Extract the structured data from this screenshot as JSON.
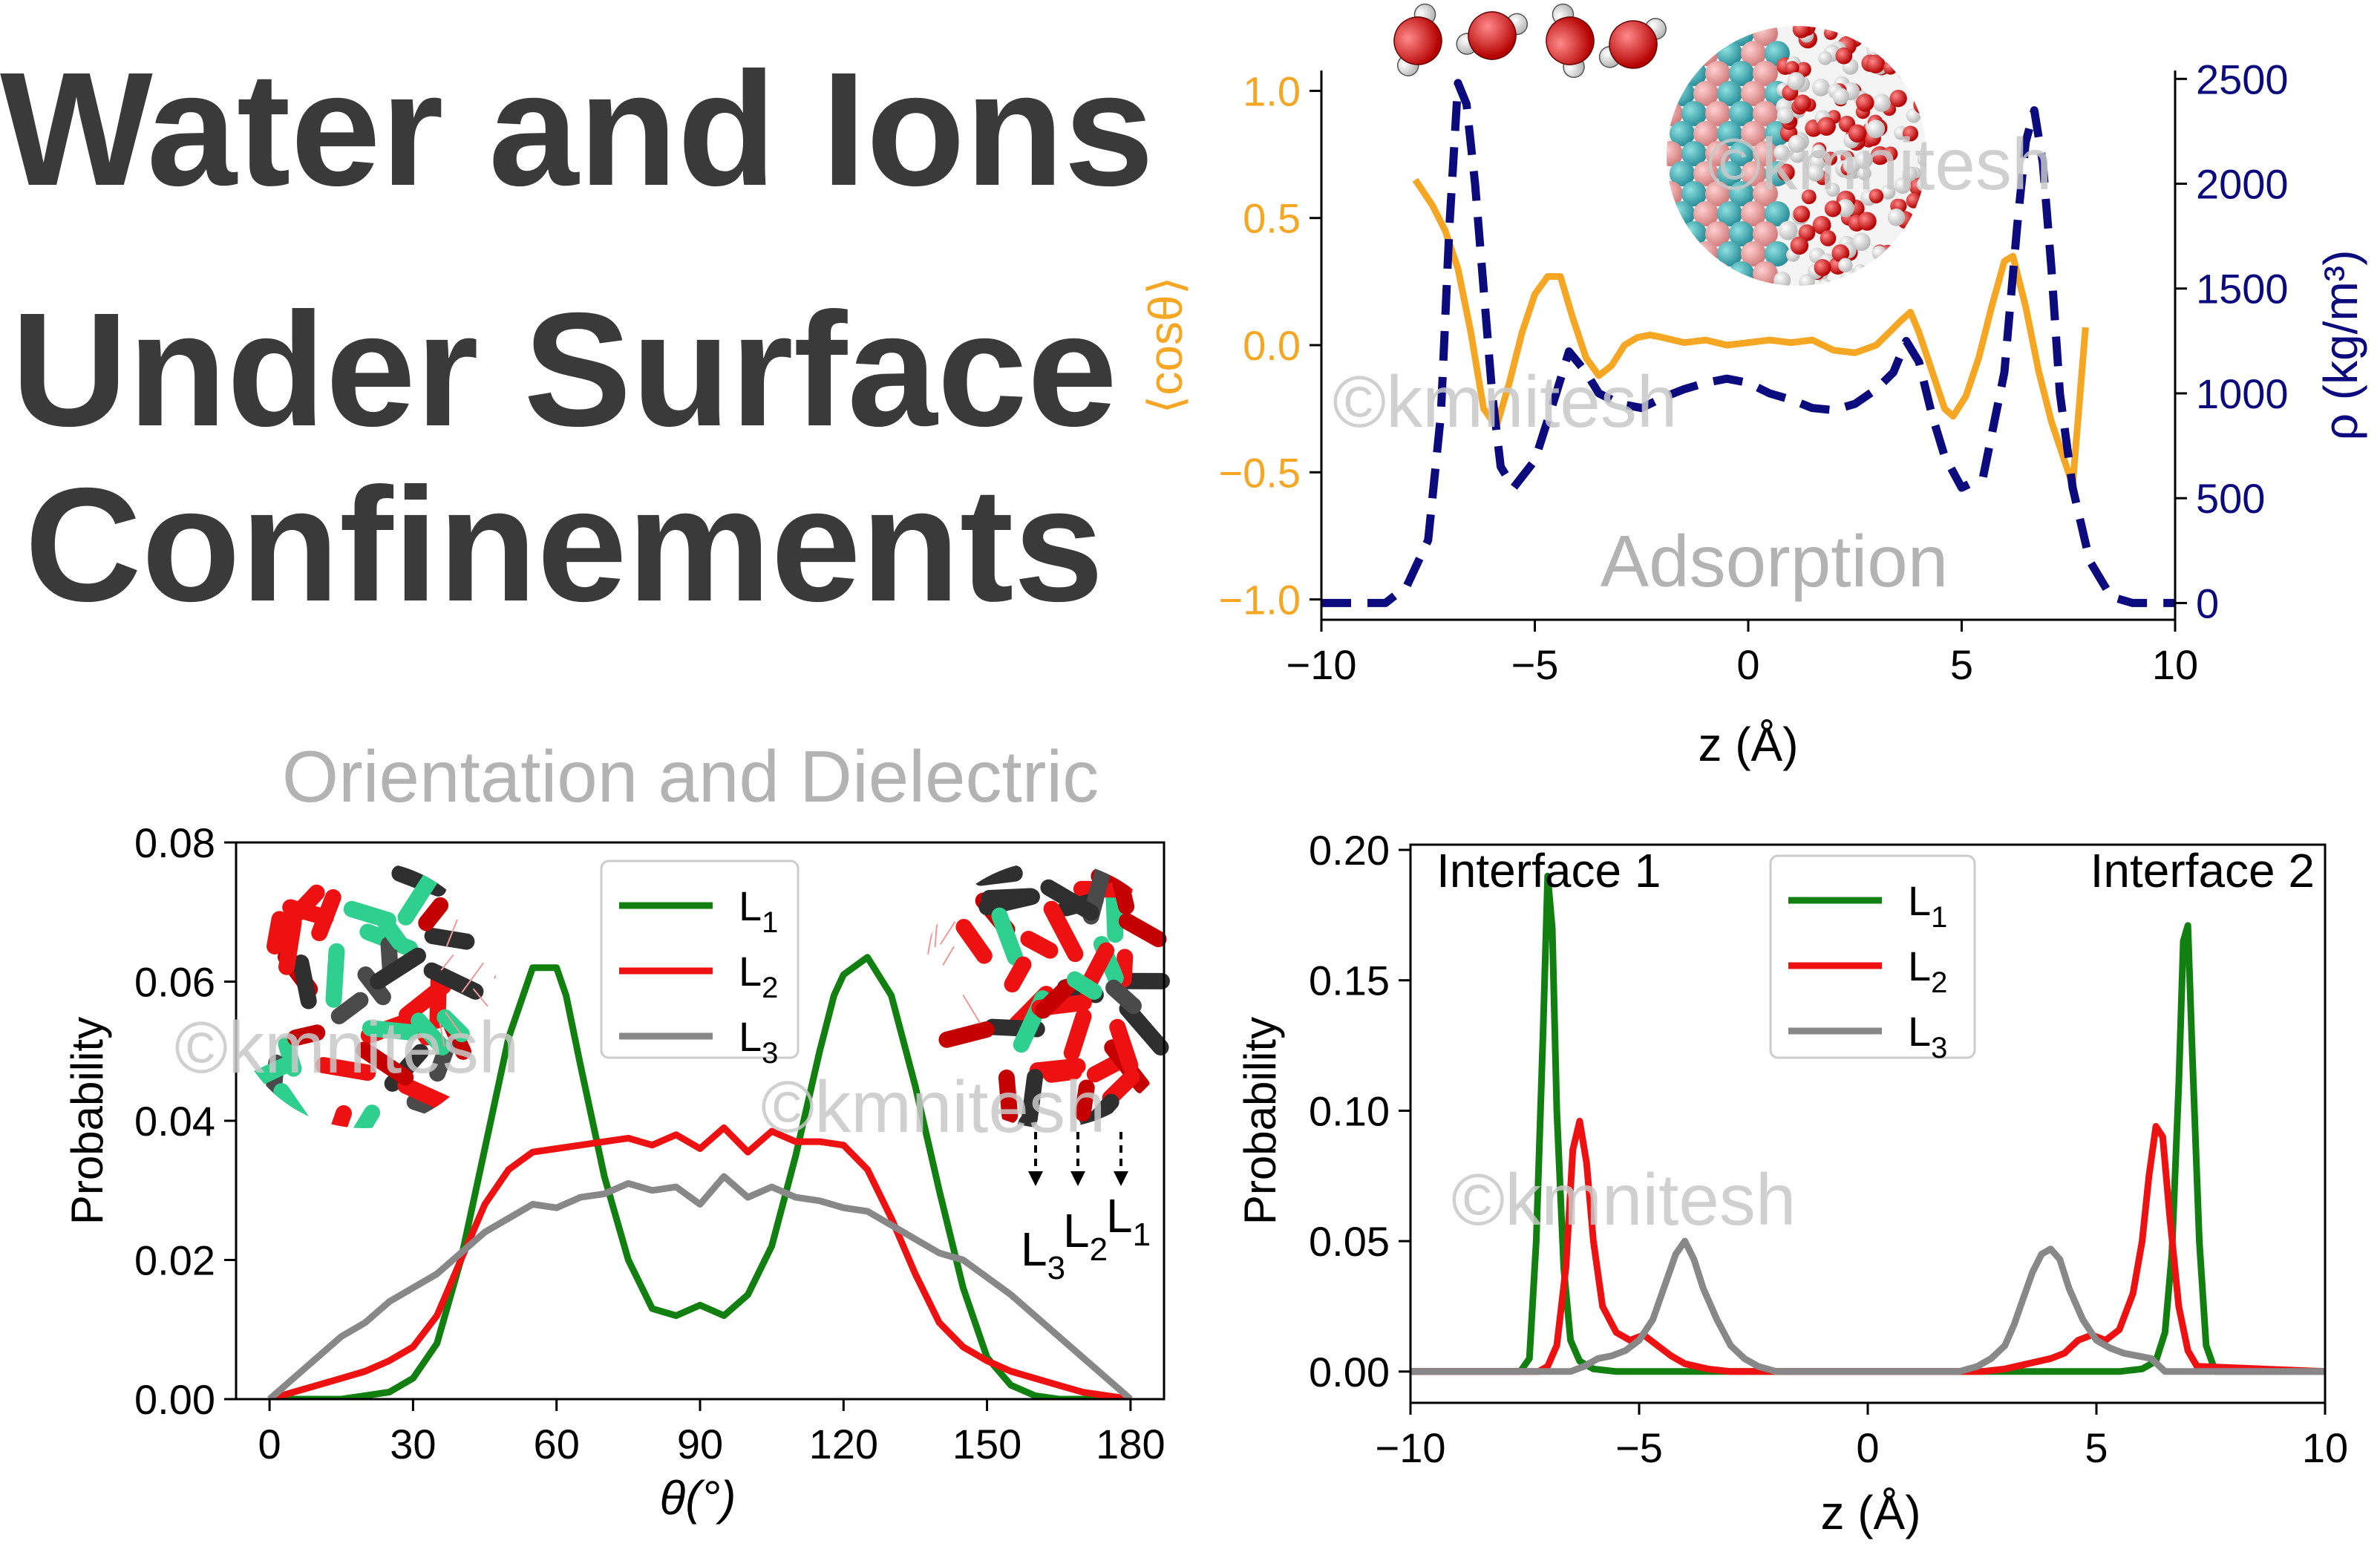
{
  "title": {
    "lines": [
      "Water and Ions",
      "Under Surface",
      "Confinements"
    ]
  },
  "watermark": "©kmnitesh",
  "colors": {
    "orange": "#f5a623",
    "navy": "#0b0b7e",
    "green": "#118011",
    "red": "#ee1111",
    "gray": "#888888",
    "annotation": "#b3b3b3",
    "title": "#3a3a3a"
  },
  "chart_data": [
    {
      "type": "line",
      "annotation": "Adsorption",
      "xlabel": "z (Å)",
      "ylabel_left": "⟨cosθ⟩",
      "ylabel_right": "ρ (kg/m³)",
      "xlim": [
        -10,
        10
      ],
      "ylim_left": [
        -1.08,
        1.08
      ],
      "ylim_right": [
        -80,
        2540
      ],
      "xticks": [
        -10,
        -5,
        0,
        5,
        10
      ],
      "xtick_labels": [
        "−10",
        "−5",
        "0",
        "5",
        "10"
      ],
      "yticks_left": [
        -1.0,
        -0.5,
        0.0,
        0.5,
        1.0
      ],
      "ytick_labels_left": [
        "−1.0",
        "−0.5",
        "0.0",
        "0.5",
        "1.0"
      ],
      "yticks_right": [
        0,
        500,
        1000,
        1500,
        2000,
        2500
      ],
      "ytick_labels_right": [
        "0",
        "500",
        "1000",
        "1500",
        "2000",
        "2500"
      ],
      "series": [
        {
          "axis": "left",
          "style": "solid",
          "color": "#f5a623",
          "x": [
            -7.8,
            -7.4,
            -7.1,
            -6.8,
            -6.5,
            -6.2,
            -5.9,
            -5.6,
            -5.3,
            -5.0,
            -4.7,
            -4.4,
            -4.1,
            -3.8,
            -3.5,
            -3.2,
            -2.9,
            -2.6,
            -2.3,
            -2.0,
            -1.5,
            -1.0,
            -0.5,
            0.0,
            0.5,
            1.0,
            1.5,
            2.0,
            2.5,
            3.0,
            3.3,
            3.6,
            3.8,
            4.0,
            4.2,
            4.4,
            4.6,
            4.8,
            5.1,
            5.4,
            5.7,
            6.0,
            6.2,
            6.5,
            6.8,
            7.1,
            7.4,
            7.6,
            7.9
          ],
          "y": [
            0.65,
            0.55,
            0.45,
            0.3,
            0.05,
            -0.25,
            -0.32,
            -0.15,
            0.05,
            0.2,
            0.27,
            0.27,
            0.1,
            -0.05,
            -0.12,
            -0.08,
            0.0,
            0.03,
            0.04,
            0.03,
            0.01,
            0.02,
            0.0,
            0.01,
            0.02,
            0.01,
            0.02,
            -0.02,
            -0.03,
            0.0,
            0.05,
            0.1,
            0.13,
            0.05,
            -0.05,
            -0.15,
            -0.25,
            -0.28,
            -0.2,
            -0.05,
            0.15,
            0.33,
            0.35,
            0.15,
            -0.1,
            -0.3,
            -0.45,
            -0.55,
            0.07
          ]
        },
        {
          "axis": "right",
          "style": "dashed",
          "color": "#0b0b7e",
          "x": [
            -10.0,
            -9.0,
            -8.5,
            -8.0,
            -7.5,
            -7.2,
            -7.0,
            -6.8,
            -6.6,
            -6.4,
            -6.2,
            -6.0,
            -5.8,
            -5.5,
            -5.0,
            -4.5,
            -4.2,
            -3.8,
            -3.5,
            -3.0,
            -2.5,
            -2.0,
            -1.5,
            -1.0,
            -0.5,
            0.0,
            0.5,
            1.0,
            1.5,
            2.0,
            2.5,
            3.0,
            3.4,
            3.7,
            4.0,
            4.3,
            4.6,
            5.0,
            5.5,
            6.0,
            6.3,
            6.5,
            6.7,
            6.9,
            7.1,
            7.3,
            7.6,
            8.0,
            8.5,
            9.0,
            10.0
          ],
          "y": [
            0,
            0,
            0,
            80,
            300,
            900,
            1800,
            2480,
            2380,
            2000,
            1500,
            1000,
            650,
            550,
            680,
            1000,
            1200,
            1100,
            1000,
            950,
            930,
            980,
            1020,
            1050,
            1070,
            1050,
            1000,
            970,
            930,
            920,
            950,
            1020,
            1100,
            1250,
            1150,
            900,
            700,
            550,
            600,
            1100,
            1800,
            2200,
            2350,
            2100,
            1600,
            1000,
            550,
            200,
            30,
            0,
            0
          ]
        }
      ]
    },
    {
      "type": "line",
      "annotation": "Orientation and Dielectric",
      "xlabel": "θ(°)",
      "ylabel": "Probability",
      "xlim": [
        -7,
        187
      ],
      "ylim": [
        0,
        0.08
      ],
      "xticks": [
        0,
        30,
        60,
        90,
        120,
        150,
        180
      ],
      "yticks": [
        0.0,
        0.02,
        0.04,
        0.06,
        0.08
      ],
      "ytick_labels": [
        "0.00",
        "0.02",
        "0.04",
        "0.06",
        "0.08"
      ],
      "legend": [
        "L1",
        "L2",
        "L3"
      ],
      "legend_position": "top-center",
      "layer_labels": [
        "L3",
        "L2",
        "L1"
      ],
      "series": [
        {
          "name": "L1",
          "color": "#118011",
          "x": [
            0,
            5,
            10,
            15,
            20,
            25,
            30,
            35,
            40,
            45,
            50,
            55,
            60,
            62,
            65,
            70,
            75,
            80,
            85,
            90,
            95,
            100,
            105,
            110,
            115,
            118,
            120,
            125,
            130,
            135,
            140,
            145,
            150,
            155,
            160,
            165,
            170,
            175,
            180
          ],
          "y": [
            0.0,
            0.0,
            0.0,
            0.0,
            0.0005,
            0.001,
            0.003,
            0.008,
            0.02,
            0.036,
            0.052,
            0.062,
            0.062,
            0.058,
            0.048,
            0.032,
            0.02,
            0.013,
            0.012,
            0.0135,
            0.012,
            0.015,
            0.022,
            0.035,
            0.05,
            0.058,
            0.061,
            0.0635,
            0.058,
            0.045,
            0.03,
            0.016,
            0.006,
            0.002,
            0.0005,
            0.0,
            0.0,
            0.0,
            0.0
          ]
        },
        {
          "name": "L2",
          "color": "#ee1111",
          "x": [
            0,
            5,
            10,
            15,
            20,
            25,
            30,
            35,
            40,
            45,
            50,
            55,
            60,
            65,
            70,
            75,
            80,
            85,
            90,
            95,
            100,
            105,
            110,
            115,
            120,
            125,
            130,
            135,
            140,
            145,
            150,
            155,
            160,
            165,
            170,
            175,
            180
          ],
          "y": [
            0.0,
            0.001,
            0.002,
            0.003,
            0.004,
            0.0055,
            0.0075,
            0.012,
            0.02,
            0.028,
            0.033,
            0.0355,
            0.036,
            0.0365,
            0.037,
            0.0375,
            0.0365,
            0.038,
            0.036,
            0.039,
            0.0355,
            0.0385,
            0.037,
            0.037,
            0.0365,
            0.033,
            0.026,
            0.018,
            0.011,
            0.0075,
            0.0055,
            0.004,
            0.003,
            0.002,
            0.001,
            0.0005,
            0.0
          ]
        },
        {
          "name": "L3",
          "color": "#888888",
          "x": [
            0,
            5,
            10,
            15,
            20,
            25,
            30,
            35,
            40,
            45,
            50,
            55,
            60,
            65,
            70,
            75,
            80,
            85,
            90,
            95,
            100,
            105,
            110,
            115,
            120,
            125,
            130,
            135,
            140,
            145,
            150,
            155,
            160,
            165,
            170,
            175,
            180
          ],
          "y": [
            0.0,
            0.003,
            0.006,
            0.009,
            0.011,
            0.014,
            0.016,
            0.018,
            0.021,
            0.024,
            0.026,
            0.028,
            0.0275,
            0.029,
            0.0295,
            0.031,
            0.03,
            0.0305,
            0.028,
            0.032,
            0.029,
            0.0305,
            0.029,
            0.0285,
            0.0275,
            0.027,
            0.025,
            0.023,
            0.021,
            0.02,
            0.0175,
            0.015,
            0.012,
            0.009,
            0.006,
            0.003,
            0.0
          ]
        }
      ]
    },
    {
      "type": "line",
      "annotation": "",
      "xlabel": "z (Å)",
      "ylabel": "Probability",
      "xlim": [
        -10,
        10
      ],
      "ylim": [
        -0.012,
        0.202
      ],
      "xticks": [
        -10,
        -5,
        0,
        5,
        10
      ],
      "xtick_labels": [
        "−10",
        "−5",
        "0",
        "5",
        "10"
      ],
      "yticks": [
        0.0,
        0.05,
        0.1,
        0.15,
        0.2
      ],
      "ytick_labels": [
        "0.00",
        "0.05",
        "0.10",
        "0.15",
        "0.20"
      ],
      "legend": [
        "L1",
        "L2",
        "L3"
      ],
      "legend_position": "top-center",
      "interface_labels": [
        "Interface 1",
        "Interface 2"
      ],
      "series": [
        {
          "name": "L1",
          "color": "#118011",
          "x": [
            -10,
            -7.6,
            -7.4,
            -7.25,
            -7.1,
            -7.0,
            -6.9,
            -6.8,
            -6.65,
            -6.5,
            -6.3,
            -6.0,
            -5.5,
            5.5,
            6.0,
            6.3,
            6.5,
            6.65,
            6.8,
            6.9,
            7.0,
            7.1,
            7.25,
            7.4,
            7.6,
            10
          ],
          "y": [
            0.0,
            0.0,
            0.005,
            0.05,
            0.13,
            0.19,
            0.17,
            0.1,
            0.04,
            0.012,
            0.004,
            0.001,
            0.0,
            0.0,
            0.001,
            0.004,
            0.015,
            0.045,
            0.11,
            0.165,
            0.171,
            0.12,
            0.05,
            0.01,
            0.0,
            0.0
          ]
        },
        {
          "name": "L2",
          "color": "#ee1111",
          "x": [
            -10,
            -7.2,
            -7.0,
            -6.8,
            -6.6,
            -6.45,
            -6.3,
            -6.15,
            -6.0,
            -5.8,
            -5.5,
            -5.2,
            -4.9,
            -4.6,
            -4.3,
            -4.0,
            -3.5,
            -3.0,
            -2.5,
            -2.0,
            2.0,
            2.5,
            3.0,
            3.5,
            4.0,
            4.3,
            4.6,
            4.9,
            5.2,
            5.5,
            5.8,
            6.0,
            6.15,
            6.3,
            6.45,
            6.6,
            6.8,
            7.0,
            7.2,
            10
          ],
          "y": [
            0.0,
            0.0,
            0.002,
            0.01,
            0.04,
            0.085,
            0.096,
            0.08,
            0.05,
            0.025,
            0.015,
            0.012,
            0.014,
            0.01,
            0.006,
            0.003,
            0.001,
            0.0,
            0.0,
            0.0,
            0.0,
            0.0,
            0.001,
            0.003,
            0.005,
            0.007,
            0.012,
            0.014,
            0.012,
            0.016,
            0.03,
            0.05,
            0.075,
            0.094,
            0.09,
            0.06,
            0.025,
            0.008,
            0.002,
            0.0
          ]
        },
        {
          "name": "L3",
          "color": "#888888",
          "x": [
            -10,
            -6.5,
            -6.2,
            -5.9,
            -5.6,
            -5.3,
            -5.0,
            -4.7,
            -4.4,
            -4.2,
            -4.0,
            -3.8,
            -3.6,
            -3.3,
            -3.0,
            -2.7,
            -2.4,
            -2.0,
            2.0,
            2.4,
            2.7,
            3.0,
            3.2,
            3.4,
            3.6,
            3.8,
            4.0,
            4.2,
            4.4,
            4.7,
            5.0,
            5.3,
            5.6,
            5.9,
            6.2,
            6.5,
            10
          ],
          "y": [
            0.0,
            0.0,
            0.002,
            0.005,
            0.006,
            0.008,
            0.012,
            0.02,
            0.035,
            0.045,
            0.05,
            0.043,
            0.032,
            0.02,
            0.01,
            0.005,
            0.002,
            0.0,
            0.0,
            0.002,
            0.005,
            0.01,
            0.018,
            0.028,
            0.038,
            0.045,
            0.047,
            0.043,
            0.032,
            0.02,
            0.012,
            0.009,
            0.007,
            0.006,
            0.005,
            0.0,
            0.0
          ]
        }
      ]
    }
  ]
}
